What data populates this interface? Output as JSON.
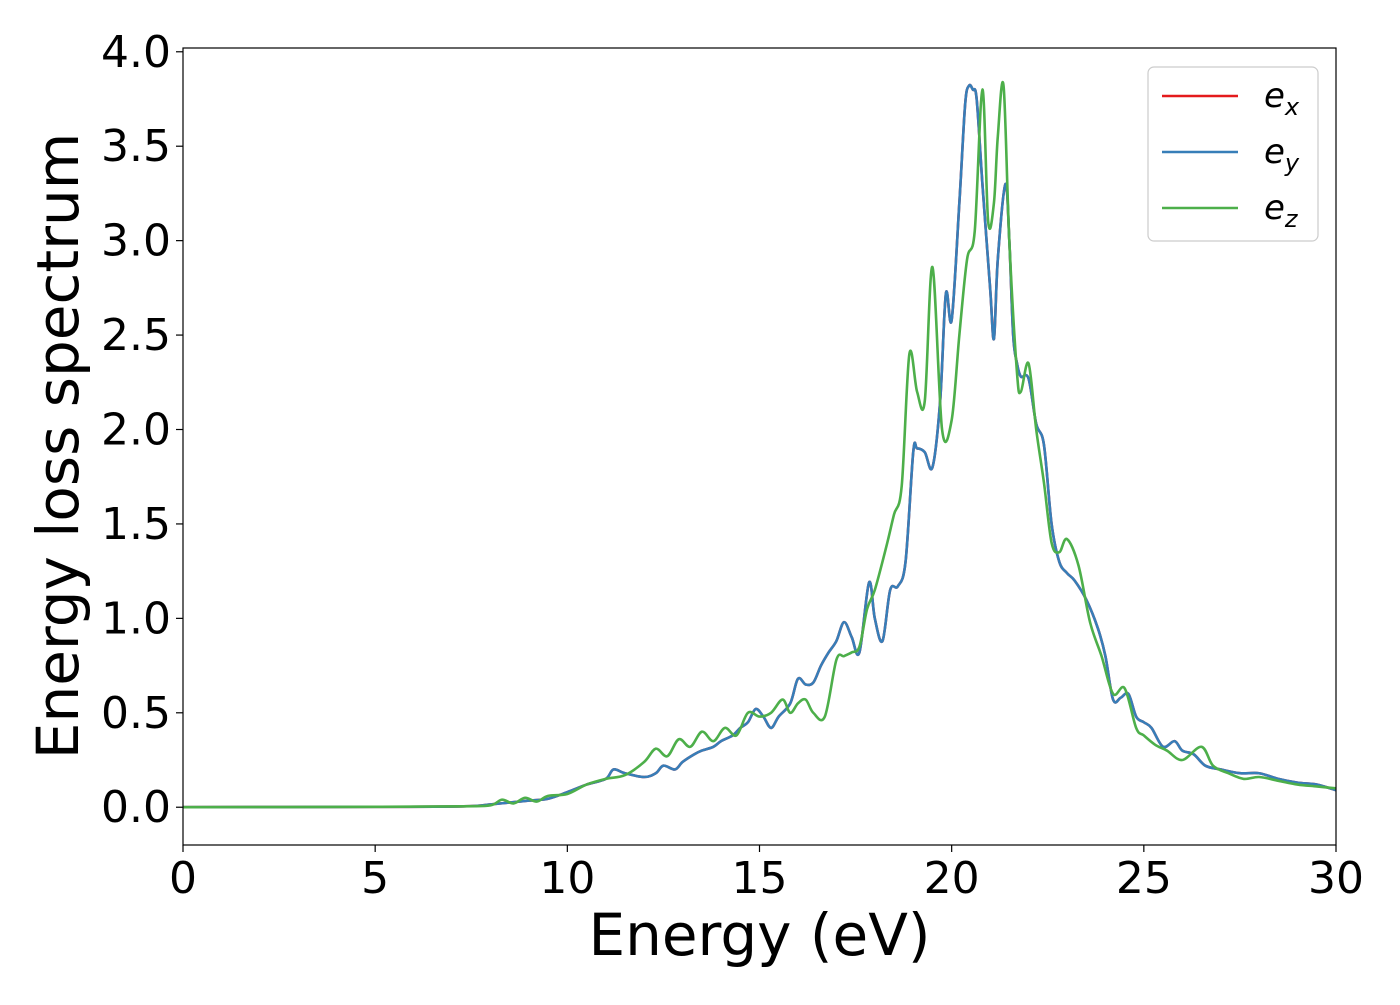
{
  "chart_data": {
    "type": "line",
    "xlabel": "Energy (eV)",
    "ylabel": "Energy loss spectrum",
    "xlim": [
      0,
      30
    ],
    "ylim": [
      -0.2,
      4.02
    ],
    "xticks": [
      0,
      5,
      10,
      15,
      20,
      25,
      30
    ],
    "yticks": [
      0.0,
      0.5,
      1.0,
      1.5,
      2.0,
      2.5,
      3.0,
      3.5,
      4.0
    ],
    "xtick_labels": [
      "0",
      "5",
      "10",
      "15",
      "20",
      "25",
      "30"
    ],
    "ytick_labels": [
      "0.0",
      "0.5",
      "1.0",
      "1.5",
      "2.0",
      "2.5",
      "3.0",
      "3.5",
      "4.0"
    ],
    "grid": false,
    "legend_position": "top-right",
    "series": [
      {
        "name": "e_x",
        "legend_base": "e",
        "legend_sub": "x",
        "color": "#e41a1c",
        "x": [
          0,
          5,
          7.3,
          8.0,
          8.5,
          9.0,
          9.5,
          10.0,
          10.5,
          11.0,
          11.2,
          11.5,
          12.0,
          12.3,
          12.5,
          12.8,
          13.0,
          13.3,
          13.5,
          13.8,
          14.0,
          14.3,
          14.5,
          14.7,
          14.9,
          15.1,
          15.3,
          15.5,
          15.8,
          16.0,
          16.2,
          16.4,
          16.6,
          16.8,
          17.0,
          17.2,
          17.4,
          17.6,
          17.85,
          18.0,
          18.2,
          18.4,
          18.6,
          18.8,
          19.0,
          19.1,
          19.3,
          19.5,
          19.7,
          19.85,
          20.0,
          20.2,
          20.35,
          20.45,
          20.55,
          20.65,
          20.8,
          21.0,
          21.1,
          21.2,
          21.4,
          21.5,
          21.6,
          21.7,
          21.8,
          22.0,
          22.2,
          22.4,
          22.6,
          22.8,
          23.0,
          23.2,
          23.5,
          23.8,
          24.0,
          24.2,
          24.4,
          24.6,
          24.8,
          25.0,
          25.2,
          25.5,
          25.8,
          26.0,
          26.3,
          26.6,
          27.0,
          27.5,
          28.0,
          28.5,
          29.0,
          29.5,
          30.0
        ],
        "y": [
          0.0,
          0.002,
          0.005,
          0.015,
          0.025,
          0.035,
          0.045,
          0.08,
          0.12,
          0.15,
          0.2,
          0.18,
          0.16,
          0.18,
          0.22,
          0.2,
          0.24,
          0.28,
          0.3,
          0.32,
          0.35,
          0.38,
          0.42,
          0.45,
          0.52,
          0.48,
          0.42,
          0.48,
          0.55,
          0.68,
          0.65,
          0.66,
          0.75,
          0.82,
          0.88,
          0.98,
          0.9,
          0.82,
          1.19,
          1.0,
          0.88,
          1.15,
          1.17,
          1.3,
          1.88,
          1.9,
          1.88,
          1.8,
          2.15,
          2.72,
          2.58,
          3.2,
          3.72,
          3.82,
          3.8,
          3.75,
          3.3,
          2.75,
          2.48,
          2.9,
          3.3,
          3.0,
          2.5,
          2.35,
          2.28,
          2.27,
          2.03,
          1.92,
          1.5,
          1.3,
          1.24,
          1.2,
          1.1,
          0.95,
          0.8,
          0.57,
          0.58,
          0.6,
          0.48,
          0.45,
          0.42,
          0.32,
          0.35,
          0.3,
          0.28,
          0.22,
          0.2,
          0.18,
          0.18,
          0.15,
          0.13,
          0.12,
          0.09
        ]
      },
      {
        "name": "e_y",
        "legend_base": "e",
        "legend_sub": "y",
        "color": "#377eb8",
        "x": [
          0,
          5,
          7.3,
          8.0,
          8.5,
          9.0,
          9.5,
          10.0,
          10.5,
          11.0,
          11.2,
          11.5,
          12.0,
          12.3,
          12.5,
          12.8,
          13.0,
          13.3,
          13.5,
          13.8,
          14.0,
          14.3,
          14.5,
          14.7,
          14.9,
          15.1,
          15.3,
          15.5,
          15.8,
          16.0,
          16.2,
          16.4,
          16.6,
          16.8,
          17.0,
          17.2,
          17.4,
          17.6,
          17.85,
          18.0,
          18.2,
          18.4,
          18.6,
          18.8,
          19.0,
          19.1,
          19.3,
          19.5,
          19.7,
          19.85,
          20.0,
          20.2,
          20.35,
          20.45,
          20.55,
          20.65,
          20.8,
          21.0,
          21.1,
          21.2,
          21.4,
          21.5,
          21.6,
          21.7,
          21.8,
          22.0,
          22.2,
          22.4,
          22.6,
          22.8,
          23.0,
          23.2,
          23.5,
          23.8,
          24.0,
          24.2,
          24.4,
          24.6,
          24.8,
          25.0,
          25.2,
          25.5,
          25.8,
          26.0,
          26.3,
          26.6,
          27.0,
          27.5,
          28.0,
          28.5,
          29.0,
          29.5,
          30.0
        ],
        "y": [
          0.0,
          0.002,
          0.005,
          0.015,
          0.025,
          0.035,
          0.045,
          0.08,
          0.12,
          0.15,
          0.2,
          0.18,
          0.16,
          0.18,
          0.22,
          0.2,
          0.24,
          0.28,
          0.3,
          0.32,
          0.35,
          0.38,
          0.42,
          0.45,
          0.52,
          0.48,
          0.42,
          0.48,
          0.55,
          0.68,
          0.65,
          0.66,
          0.75,
          0.82,
          0.88,
          0.98,
          0.9,
          0.82,
          1.19,
          1.0,
          0.88,
          1.15,
          1.17,
          1.3,
          1.88,
          1.9,
          1.88,
          1.8,
          2.15,
          2.72,
          2.58,
          3.2,
          3.72,
          3.82,
          3.8,
          3.75,
          3.3,
          2.75,
          2.48,
          2.9,
          3.3,
          3.0,
          2.5,
          2.35,
          2.28,
          2.27,
          2.03,
          1.92,
          1.5,
          1.3,
          1.24,
          1.2,
          1.1,
          0.95,
          0.8,
          0.57,
          0.58,
          0.6,
          0.48,
          0.45,
          0.42,
          0.32,
          0.35,
          0.3,
          0.28,
          0.22,
          0.2,
          0.18,
          0.18,
          0.15,
          0.13,
          0.12,
          0.09
        ]
      },
      {
        "name": "e_z",
        "legend_base": "e",
        "legend_sub": "z",
        "color": "#4daf4a",
        "x": [
          0,
          5,
          7.3,
          8.0,
          8.3,
          8.6,
          8.9,
          9.2,
          9.5,
          10.0,
          10.5,
          11.0,
          11.5,
          12.0,
          12.3,
          12.6,
          12.9,
          13.2,
          13.5,
          13.8,
          14.1,
          14.4,
          14.7,
          15.0,
          15.3,
          15.6,
          15.8,
          16.0,
          16.2,
          16.4,
          16.7,
          17.0,
          17.2,
          17.4,
          17.6,
          17.8,
          18.0,
          18.3,
          18.5,
          18.7,
          18.9,
          19.1,
          19.3,
          19.5,
          19.75,
          20.0,
          20.2,
          20.4,
          20.6,
          20.8,
          20.95,
          21.1,
          21.2,
          21.35,
          21.5,
          21.7,
          21.8,
          22.0,
          22.2,
          22.4,
          22.6,
          22.8,
          23.0,
          23.3,
          23.6,
          23.9,
          24.2,
          24.5,
          24.8,
          25.0,
          25.3,
          25.6,
          26.0,
          26.5,
          26.8,
          27.2,
          27.6,
          28.0,
          28.5,
          29.0,
          29.5,
          30.0
        ],
        "y": [
          0.0,
          0.002,
          0.005,
          0.01,
          0.04,
          0.02,
          0.05,
          0.03,
          0.06,
          0.07,
          0.12,
          0.15,
          0.17,
          0.24,
          0.31,
          0.27,
          0.36,
          0.32,
          0.4,
          0.35,
          0.42,
          0.38,
          0.5,
          0.48,
          0.5,
          0.57,
          0.5,
          0.55,
          0.57,
          0.5,
          0.48,
          0.78,
          0.8,
          0.82,
          0.85,
          1.05,
          1.15,
          1.38,
          1.55,
          1.7,
          2.4,
          2.2,
          2.15,
          2.86,
          2.0,
          2.05,
          2.5,
          2.9,
          3.05,
          3.8,
          3.1,
          3.2,
          3.55,
          3.82,
          3.0,
          2.3,
          2.2,
          2.35,
          2.0,
          1.72,
          1.4,
          1.35,
          1.42,
          1.28,
          0.98,
          0.8,
          0.6,
          0.63,
          0.42,
          0.38,
          0.33,
          0.3,
          0.25,
          0.32,
          0.22,
          0.18,
          0.15,
          0.16,
          0.14,
          0.12,
          0.11,
          0.1
        ]
      }
    ]
  }
}
